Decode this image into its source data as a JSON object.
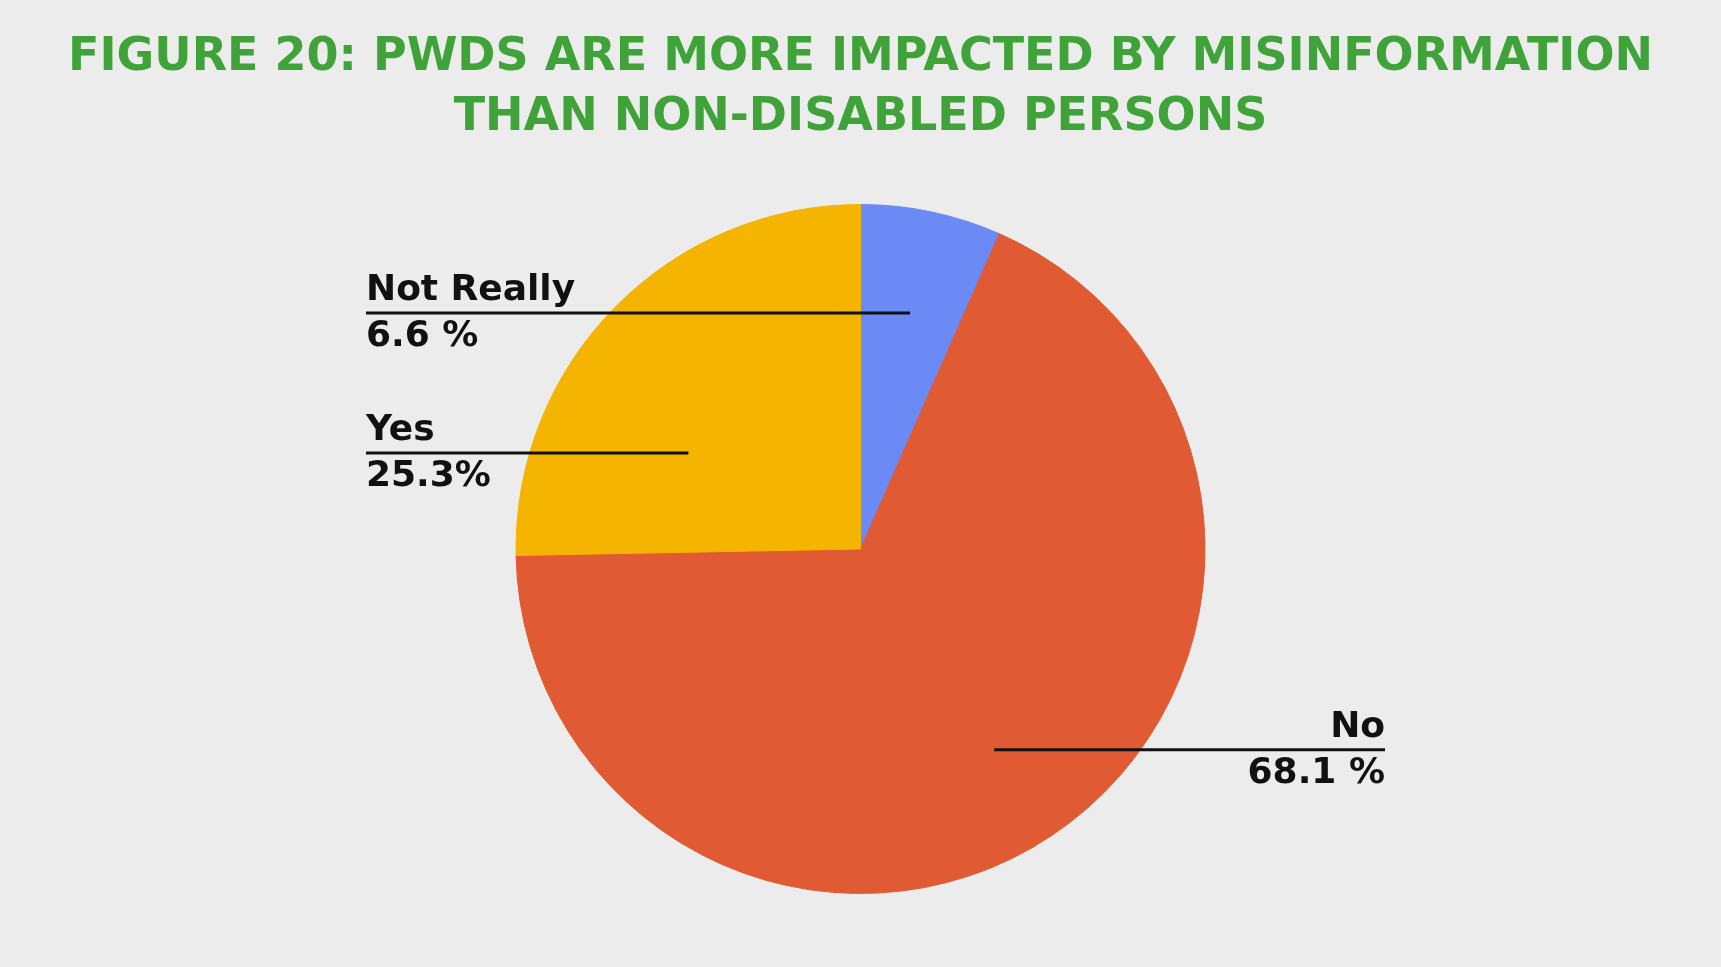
{
  "chart_data": {
    "type": "pie",
    "title": "FIGURE 20: PWDS ARE MORE IMPACTED BY MISINFORMATION THAN NON-DISABLED PERSONS",
    "categories": [
      "Not Really",
      "No",
      "Yes"
    ],
    "values": [
      6.6,
      68.1,
      25.3
    ],
    "colors": [
      "#6b8af5",
      "#e05a33",
      "#f4b400"
    ],
    "value_labels": [
      "6.6 %",
      "68.1 %",
      "25.3%"
    ],
    "legend": false
  }
}
